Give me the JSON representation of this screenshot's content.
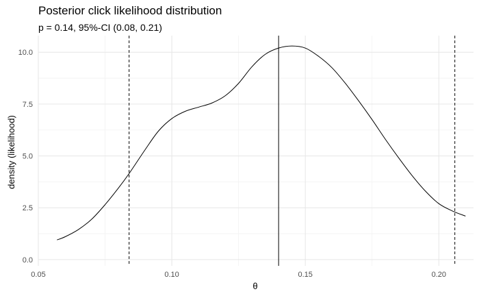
{
  "chart_data": {
    "type": "line",
    "title": "Posterior click likelihood distribution",
    "subtitle": "p = 0.14, 95%-CI (0.08, 0.21)",
    "xlabel": "θ",
    "ylabel": "density (likelihood)",
    "xlim": [
      0.05,
      0.213
    ],
    "ylim": [
      -0.3,
      10.8
    ],
    "x_ticks": [
      0.05,
      0.1,
      0.15,
      0.2
    ],
    "x_tick_labels": [
      "0.05",
      "0.10",
      "0.15",
      "0.20"
    ],
    "y_ticks": [
      0.0,
      2.5,
      5.0,
      7.5,
      10.0
    ],
    "y_tick_labels": [
      "0.0",
      "2.5",
      "5.0",
      "7.5",
      "10.0"
    ],
    "grid": true,
    "series": [
      {
        "x": [
          0.057,
          0.06,
          0.065,
          0.07,
          0.075,
          0.08,
          0.084,
          0.09,
          0.095,
          0.1,
          0.105,
          0.11,
          0.115,
          0.12,
          0.125,
          0.13,
          0.135,
          0.14,
          0.145,
          0.15,
          0.155,
          0.16,
          0.165,
          0.17,
          0.175,
          0.18,
          0.185,
          0.19,
          0.195,
          0.2,
          0.205,
          0.21
        ],
        "y": [
          0.95,
          1.1,
          1.45,
          1.95,
          2.65,
          3.45,
          4.15,
          5.3,
          6.2,
          6.8,
          7.15,
          7.35,
          7.55,
          7.9,
          8.5,
          9.3,
          9.9,
          10.2,
          10.3,
          10.2,
          9.8,
          9.25,
          8.5,
          7.65,
          6.75,
          5.8,
          4.9,
          4.05,
          3.3,
          2.7,
          2.35,
          2.1
        ]
      }
    ],
    "vlines": [
      {
        "x": 0.084,
        "style": "dashed"
      },
      {
        "x": 0.14,
        "style": "solid"
      },
      {
        "x": 0.206,
        "style": "dashed"
      }
    ]
  }
}
